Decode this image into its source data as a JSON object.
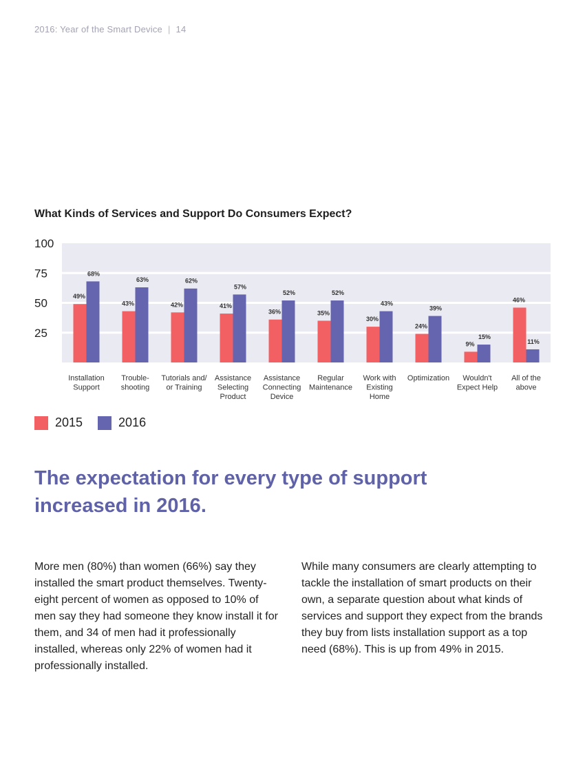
{
  "header": {
    "title": "2016: Year of the Smart Device",
    "separator": "|",
    "page_number": "14"
  },
  "colors": {
    "series_2015": "#f26063",
    "series_2016": "#6564ae",
    "plot_bg": "#eaeaf2",
    "headline": "#6062a8"
  },
  "chart_data": {
    "type": "bar",
    "title": "What Kinds of Services and Support Do Consumers Expect?",
    "xlabel": "",
    "ylabel": "",
    "ylim": [
      0,
      100
    ],
    "yticks": [
      "25",
      "50",
      "75",
      "100"
    ],
    "grid": true,
    "legend_position": "bottom-left",
    "categories": [
      [
        "Installation",
        "Support"
      ],
      [
        "Trouble-",
        "shooting"
      ],
      [
        "Tutorials and/",
        "or Training"
      ],
      [
        "Assistance",
        "Selecting",
        "Product"
      ],
      [
        "Assistance",
        "Connecting",
        "Device"
      ],
      [
        "Regular",
        "Maintenance"
      ],
      [
        "Work with",
        "Existing",
        "Home"
      ],
      [
        "Optimization"
      ],
      [
        "Wouldn't",
        "Expect Help"
      ],
      [
        "All of the",
        "above"
      ]
    ],
    "series": [
      {
        "name": "2015",
        "values": [
          49,
          43,
          42,
          41,
          36,
          35,
          30,
          24,
          9,
          46
        ],
        "labels": [
          "49%",
          "43%",
          "42%",
          "41%",
          "36%",
          "35%",
          "30%",
          "24%",
          "9%",
          "46%"
        ]
      },
      {
        "name": "2016",
        "values": [
          68,
          63,
          62,
          57,
          52,
          52,
          43,
          39,
          15,
          11
        ],
        "labels": [
          "68%",
          "63%",
          "62%",
          "57%",
          "52%",
          "52%",
          "43%",
          "39%",
          "15%",
          "11%"
        ]
      }
    ]
  },
  "headline": "The expectation for every type of support increased in 2016.",
  "body": {
    "left": "More men (80%) than women (66%) say they installed the smart product themselves. Twenty-eight percent of women as opposed to 10% of men say they had someone they know install it for them, and 34 of men had it professionally installed, whereas only 22% of women had it professionally installed.",
    "right": "While many consumers are clearly attempting to tackle the installation of smart products on their own, a separate question about what kinds of services and support they expect from the brands they buy from lists installation support as a top need (68%). This is up from 49% in 2015."
  }
}
